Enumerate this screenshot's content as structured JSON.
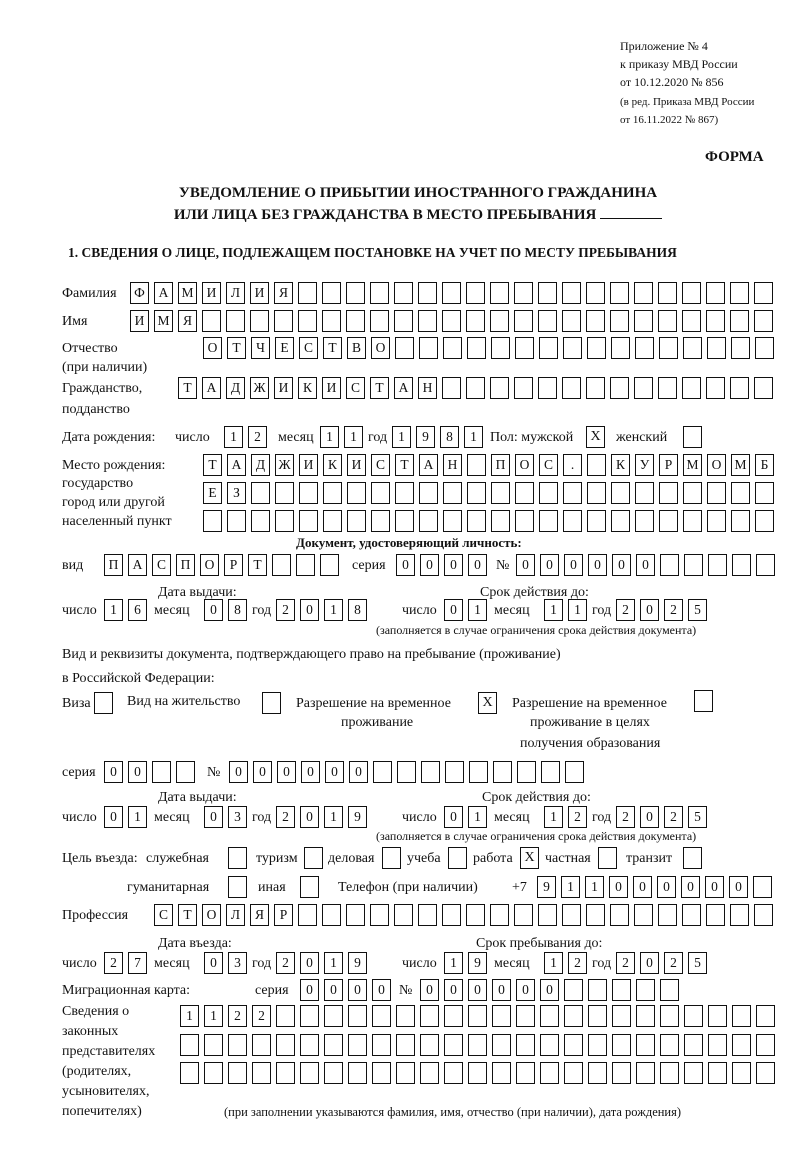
{
  "header": {
    "l1": "Приложение № 4",
    "l2": "к приказу МВД России",
    "l3": "от 10.12.2020 № 856",
    "l4": "(в ред. Приказа МВД России",
    "l5": "от 16.11.2022 № 867)"
  },
  "forma": "ФОРМА",
  "title": {
    "line1": "УВЕДОМЛЕНИЕ О ПРИБЫТИИ ИНОСТРАННОГО ГРАЖДАНИНА",
    "line2": "ИЛИ ЛИЦА БЕЗ ГРАЖДАНСТВА В МЕСТО ПРЕБЫВАНИЯ"
  },
  "section1": "1. СВЕДЕНИЯ О ЛИЦЕ, ПОДЛЕЖАЩЕМ ПОСТАНОВКЕ НА УЧЕТ ПО МЕСТУ ПРЕБЫВАНИЯ",
  "surname": {
    "label": "Фамилия",
    "value": "ФАМИЛИЯ"
  },
  "name": {
    "label": "Имя",
    "value": "ИМЯ"
  },
  "patronymic": {
    "label1": "Отчество",
    "label2": "(при наличии)",
    "value": "ОТЧЕСТВО"
  },
  "citizenship": {
    "label1": "Гражданство,",
    "label2": "подданство",
    "value": "ТАДЖИКИСТАН"
  },
  "birth": {
    "label": "Дата рождения:",
    "day_label": "число",
    "day": "12",
    "month_label": "месяц",
    "month": "11",
    "year_label": "год",
    "year": "1981",
    "sex_label": "Пол: мужской",
    "male": "X",
    "female_label": "женский",
    "female": ""
  },
  "birthplace": {
    "label1": "Место рождения:",
    "label2": "государство",
    "label3": "город или другой",
    "label4": "населенный пункт",
    "row1": "ТАДЖИКИСТАН ПОС. КУРМОМБ",
    "row2": "ЕЗ",
    "row3": ""
  },
  "id_doc": {
    "heading": "Документ, удостоверяющий личность:",
    "type_label": "вид",
    "type": "ПАСПОРТ",
    "series_label": "серия",
    "series": "0000",
    "number_label": "№",
    "number": "000000",
    "issue_label": "Дата выдачи:",
    "issue": {
      "day": "16",
      "month": "08",
      "year": "2018"
    },
    "valid_label": "Срок действия до:",
    "valid": {
      "day": "01",
      "month": "11",
      "year": "2025"
    },
    "note": "(заполняется в случае ограничения срока действия документа)"
  },
  "labels": {
    "day": "число",
    "month": "месяц",
    "year": "год"
  },
  "stay_doc": {
    "line1": "Вид и реквизиты документа, подтверждающего право на пребывание (проживание)",
    "line2": "в Российской Федерации:",
    "visa_label": "Виза",
    "visa": "",
    "residence_label": "Вид на жительство",
    "residence": "",
    "trp_label1": "Разрешение на временное",
    "trp_label2": "проживание",
    "trp": "X",
    "trp_edu_label1": "Разрешение на временное",
    "trp_edu_label2": "проживание в целях",
    "trp_edu_label3": "получения образования",
    "trp_edu": "",
    "series_label": "серия",
    "series": "00",
    "number_label": "№",
    "number": "000000",
    "issue_label": "Дата выдачи:",
    "issue": {
      "day": "01",
      "month": "03",
      "year": "2019"
    },
    "valid_label": "Срок действия до:",
    "valid": {
      "day": "01",
      "month": "12",
      "year": "2025"
    },
    "note": "(заполняется в случае ограничения срока действия документа)"
  },
  "purpose": {
    "label": "Цель въезда:",
    "service_label": "служебная",
    "service": "",
    "tourism_label": "туризм",
    "tourism": "",
    "business_label": "деловая",
    "business": "",
    "study_label": "учеба",
    "study": "",
    "work_label": "работа",
    "work": "X",
    "private_label": "частная",
    "private": "",
    "transit_label": "транзит",
    "transit": "",
    "humanitarian_label": "гуманитарная",
    "humanitarian": "",
    "other_label": "иная",
    "other": ""
  },
  "phone": {
    "label": "Телефон (при наличии)",
    "prefix": "+7",
    "value": "911000000"
  },
  "profession": {
    "label": "Профессия",
    "value": "СТОЛЯР"
  },
  "entry": {
    "label": "Дата въезда:",
    "day": "27",
    "month": "03",
    "year": "2019"
  },
  "stay_until": {
    "label": "Срок пребывания до:",
    "day": "19",
    "month": "12",
    "year": "2025"
  },
  "migration_card": {
    "label": "Миграционная карта:",
    "series_label": "серия",
    "series": "0000",
    "number_label": "№",
    "number": "000000"
  },
  "representatives": {
    "label1": "Сведения о",
    "label2": "законных",
    "label3": "представителях",
    "label4": "(родителях,",
    "label5": "усыновителях,",
    "label6": "попечителях)",
    "row1": "1122",
    "row2": "",
    "row3": "",
    "note": "(при заполнении указываются фамилия, имя, отчество (при наличии), дата рождения)"
  }
}
